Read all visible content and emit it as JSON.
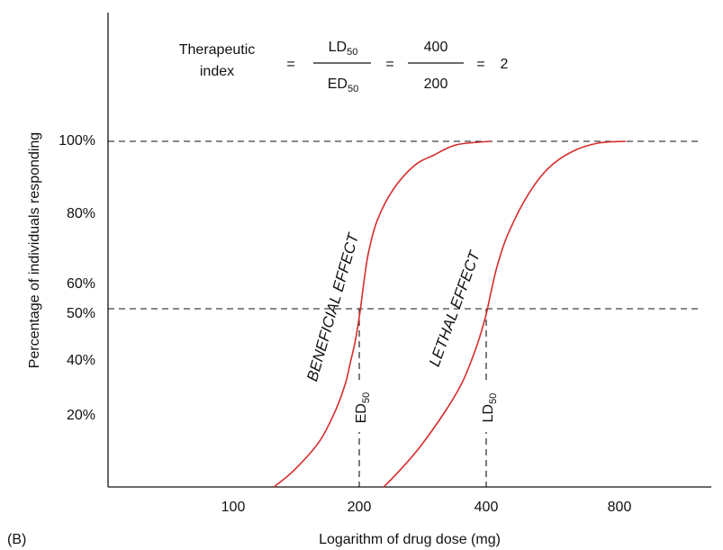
{
  "panel_label": "(B)",
  "chart_data": {
    "type": "line",
    "xlabel": "Logarithm of drug dose (mg)",
    "ylabel": "Percentage of individuals responding",
    "x_scale": "log",
    "x_ticks": [
      100,
      200,
      400,
      800
    ],
    "x_tick_labels": [
      "100",
      "200",
      "400",
      "800"
    ],
    "y_ticks": [
      20,
      40,
      50,
      60,
      80,
      100
    ],
    "y_tick_labels": [
      "20%",
      "40%",
      "50%",
      "60%",
      "80%",
      "100%"
    ],
    "ylim": [
      0,
      100
    ],
    "series": [
      {
        "name": "BENEFICIAL EFFECT",
        "color": "#d62d2d",
        "x": [
          125,
          140,
          160,
          175,
          185,
          190,
          195,
          200,
          205,
          210,
          220,
          240,
          270,
          300,
          340,
          410
        ],
        "y": [
          0,
          5,
          13,
          22,
          30,
          36,
          42,
          50,
          60,
          68,
          77,
          86,
          93,
          96,
          99,
          100
        ]
      },
      {
        "name": "LETHAL EFFECT",
        "color": "#d62d2d",
        "x": [
          228,
          250,
          280,
          320,
          350,
          370,
          385,
          400,
          410,
          425,
          450,
          500,
          560,
          640,
          740,
          860
        ],
        "y": [
          0,
          5,
          12,
          22,
          30,
          37,
          43,
          50,
          56,
          64,
          73,
          84,
          92,
          97,
          99.5,
          100
        ]
      }
    ],
    "reference_lines": [
      {
        "orientation": "horizontal",
        "y": 100
      },
      {
        "orientation": "horizontal",
        "y": 50
      },
      {
        "orientation": "vertical",
        "x": 200,
        "label_main": "ED",
        "label_sub": "50"
      },
      {
        "orientation": "vertical",
        "x": 400,
        "label_main": "LD",
        "label_sub": "50"
      }
    ],
    "formula": {
      "name_line1": "Therapeutic",
      "name_line2": "index",
      "eq1": "=",
      "num_main": "LD",
      "num_sub": "50",
      "den_main": "ED",
      "den_sub": "50",
      "eq2": "=",
      "num_value": "400",
      "den_value": "200",
      "eq3": "=",
      "result": "2"
    }
  }
}
